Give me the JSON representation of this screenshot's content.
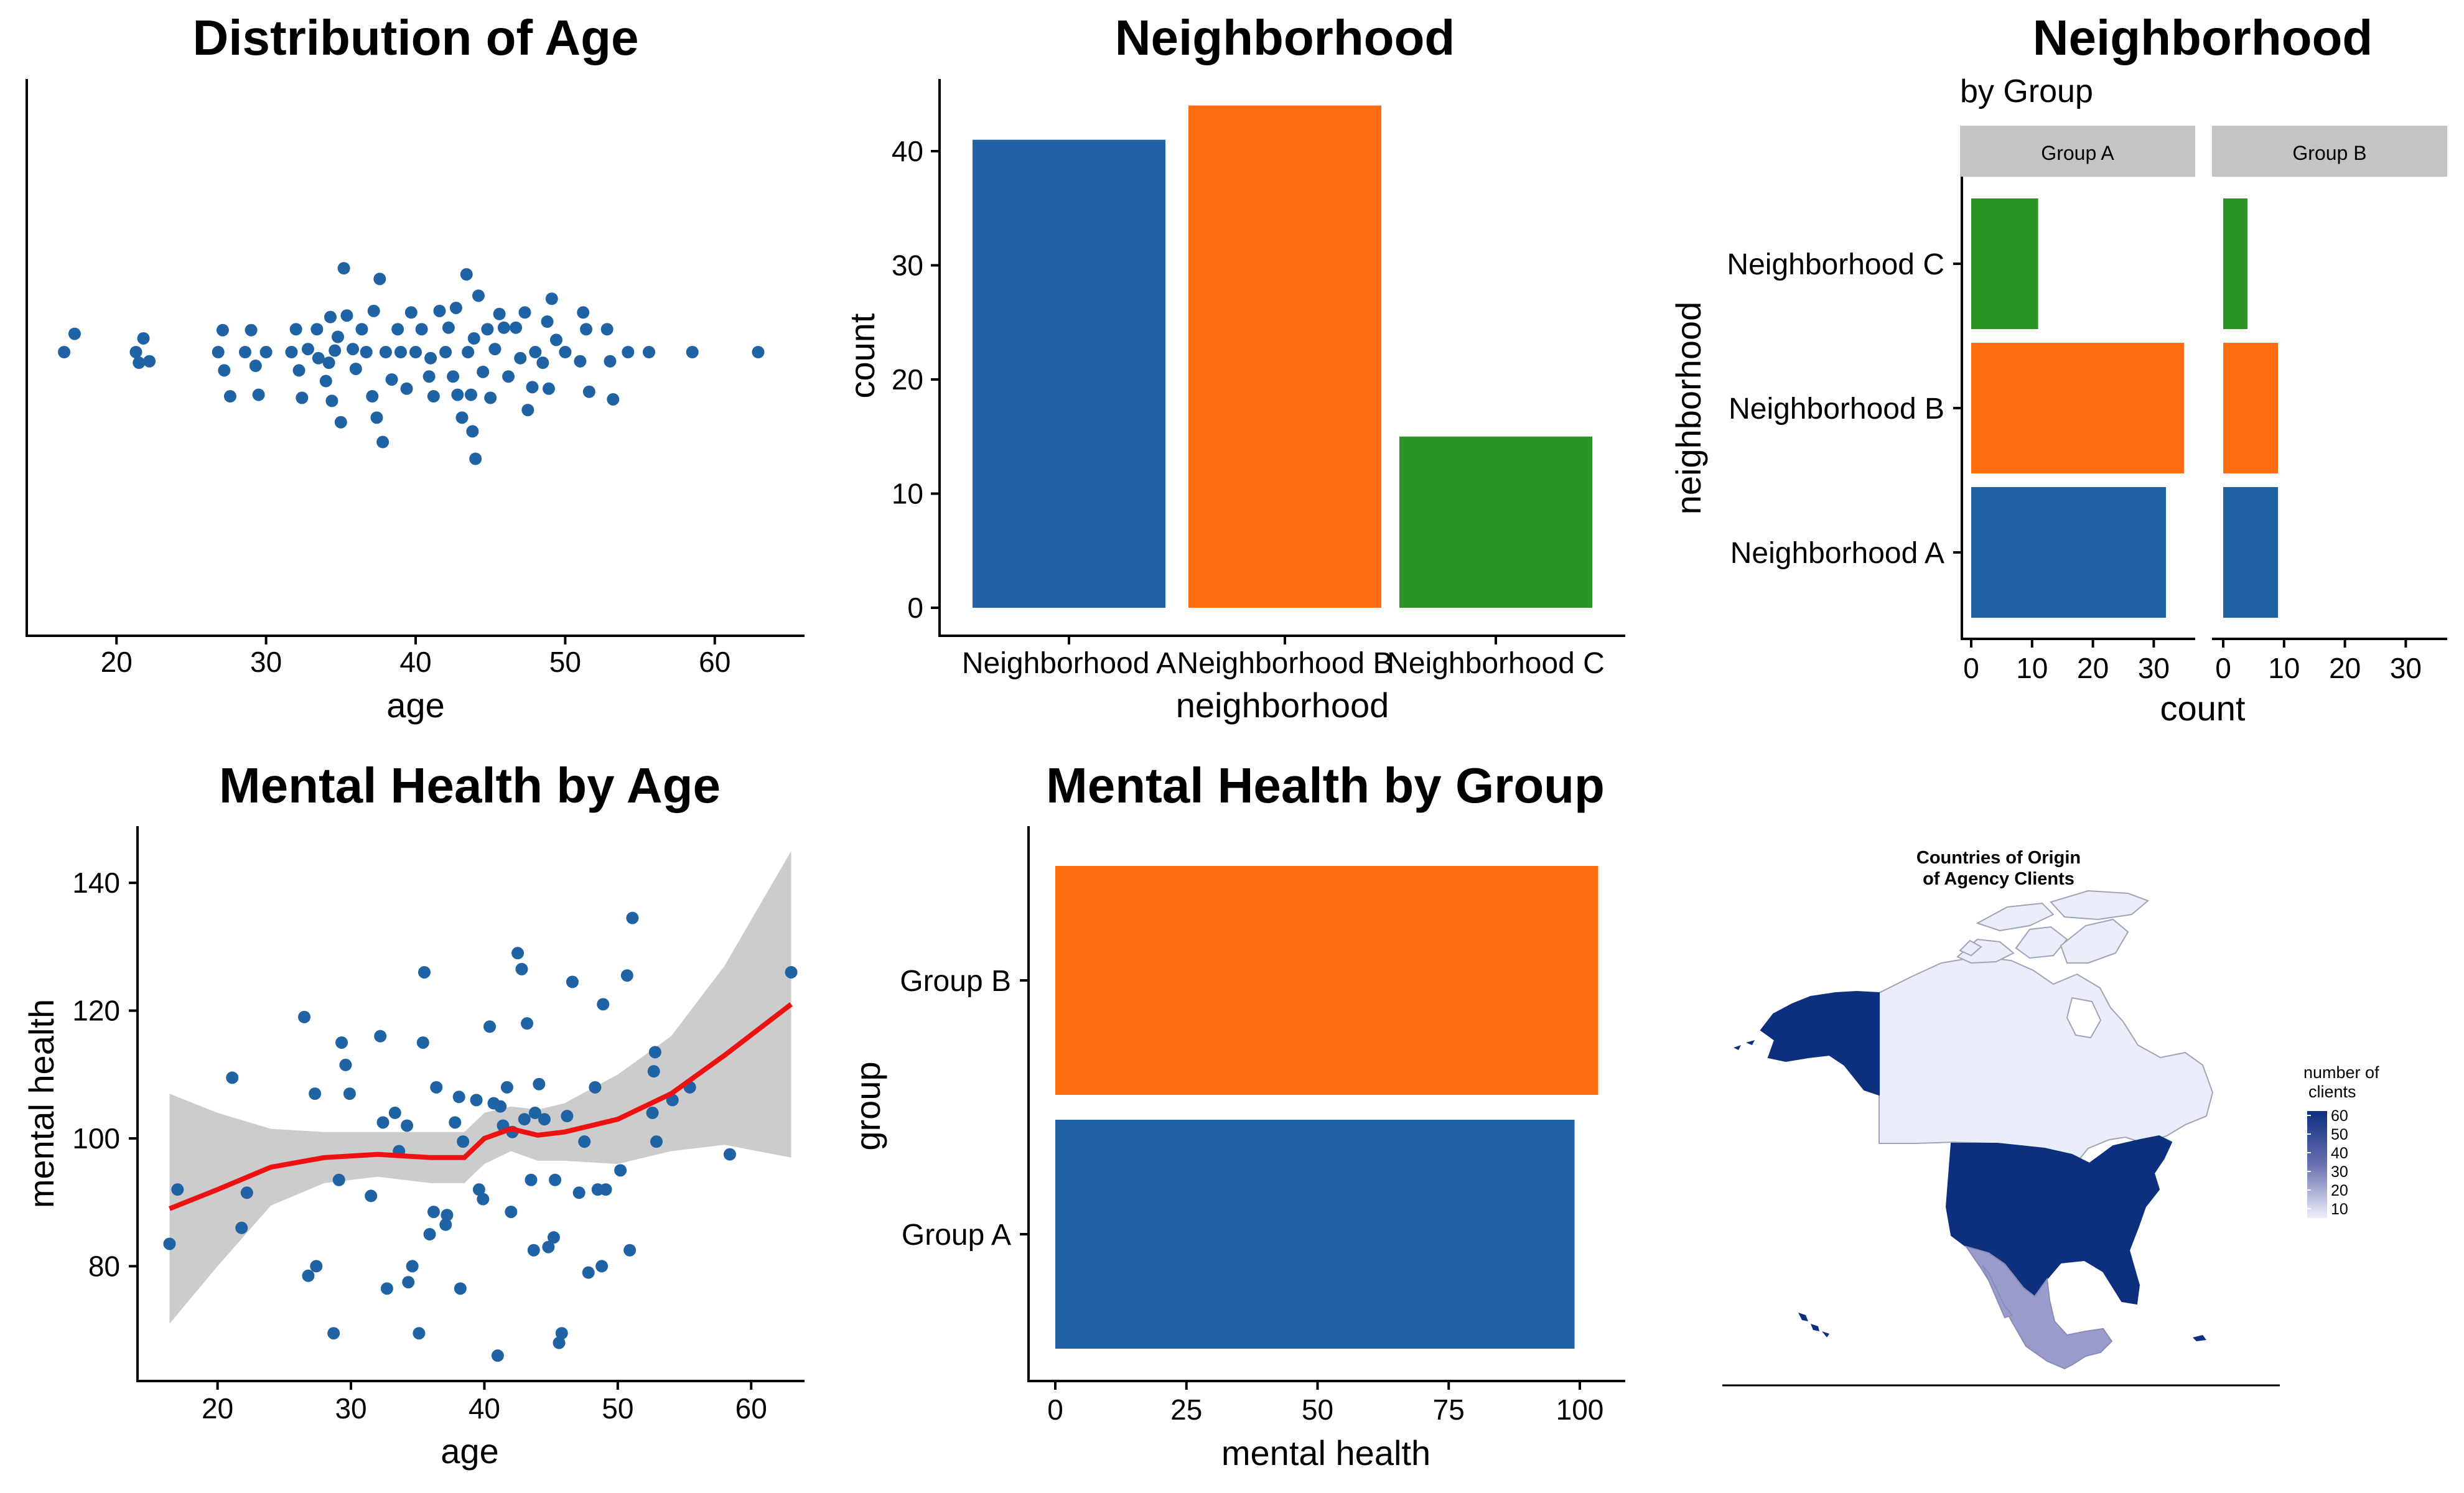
{
  "colors": {
    "blue": "#1f63a5",
    "orange": "#ff6c0f",
    "green": "#2a9424",
    "smooth": "#ee1111",
    "band": "#cccccc",
    "strip": "#c4c4c4",
    "map_dark": "#0c2f7e",
    "map_mid": "#9a9dcb",
    "map_light": "#e9edfa"
  },
  "chart_data": [
    {
      "id": "p1",
      "type": "scatter",
      "title": "Distribution of Age",
      "xlabel": "age",
      "ylabel": "",
      "xlim": [
        14,
        66
      ],
      "xticks": [
        20,
        30,
        40,
        50,
        60
      ],
      "note": "one-dimensional dot/beeswarm plot of age, y carries no data",
      "points": [
        [
          16.5,
          0
        ],
        [
          17.2,
          0.6
        ],
        [
          21.3,
          0
        ],
        [
          21.8,
          0.45
        ],
        [
          22.2,
          -0.3
        ],
        [
          26.8,
          0
        ],
        [
          27.1,
          0.72
        ],
        [
          27.2,
          -0.6
        ],
        [
          27.6,
          -1.45
        ],
        [
          28.6,
          0
        ],
        [
          29,
          0.72
        ],
        [
          29.3,
          -0.45
        ],
        [
          29.5,
          -1.4
        ],
        [
          30,
          0
        ],
        [
          31.7,
          0
        ],
        [
          32,
          0.75
        ],
        [
          32.2,
          -0.6
        ],
        [
          32.4,
          -1.5
        ],
        [
          32.8,
          0.1
        ],
        [
          33.4,
          0.75
        ],
        [
          33.5,
          -0.2
        ],
        [
          34,
          -0.95
        ],
        [
          34.2,
          -0.35
        ],
        [
          34.3,
          1.15
        ],
        [
          34.4,
          -1.6
        ],
        [
          34.6,
          0.05
        ],
        [
          34.8,
          0.5
        ],
        [
          35,
          -2.3
        ],
        [
          35.2,
          2.75
        ],
        [
          35.4,
          1.2
        ],
        [
          35.8,
          0.1
        ],
        [
          36,
          -0.55
        ],
        [
          36.4,
          0.75
        ],
        [
          36.7,
          0
        ],
        [
          37.1,
          -1.45
        ],
        [
          37.2,
          1.35
        ],
        [
          37.4,
          -2.15
        ],
        [
          37.6,
          2.4
        ],
        [
          37.8,
          -2.95
        ],
        [
          38,
          0
        ],
        [
          38.4,
          -0.9
        ],
        [
          38.8,
          0.75
        ],
        [
          39,
          0
        ],
        [
          39.4,
          -1.2
        ],
        [
          39.7,
          1.3
        ],
        [
          40,
          0
        ],
        [
          40.4,
          0.75
        ],
        [
          40.9,
          -0.8
        ],
        [
          41,
          -0.2
        ],
        [
          41.2,
          -1.45
        ],
        [
          41.6,
          1.35
        ],
        [
          42,
          0
        ],
        [
          42.2,
          0.8
        ],
        [
          42.5,
          -0.8
        ],
        [
          42.7,
          1.45
        ],
        [
          42.8,
          -1.4
        ],
        [
          43.1,
          -2.15
        ],
        [
          43.4,
          2.55
        ],
        [
          43.5,
          0
        ],
        [
          43.7,
          -1.4
        ],
        [
          43.8,
          -2.6
        ],
        [
          43.9,
          0.45
        ],
        [
          44,
          -3.5
        ],
        [
          44.2,
          1.85
        ],
        [
          44.5,
          -0.65
        ],
        [
          44.8,
          0.75
        ],
        [
          45,
          -1.5
        ],
        [
          45.3,
          0.1
        ],
        [
          45.6,
          1.25
        ],
        [
          45.9,
          0.8
        ],
        [
          46.2,
          -0.8
        ],
        [
          46.7,
          0.8
        ],
        [
          47,
          -0.2
        ],
        [
          47.3,
          1.3
        ],
        [
          47.5,
          -1.9
        ],
        [
          47.8,
          -1.15
        ],
        [
          48,
          0
        ],
        [
          48.5,
          -0.35
        ],
        [
          48.8,
          1.0
        ],
        [
          48.9,
          -1.2
        ],
        [
          49.1,
          1.75
        ],
        [
          49.4,
          0.4
        ],
        [
          50,
          0
        ],
        [
          51,
          -0.3
        ],
        [
          51.2,
          1.3
        ],
        [
          51.4,
          0.75
        ],
        [
          51.6,
          -1.3
        ],
        [
          52.8,
          0.75
        ],
        [
          53,
          -0.3
        ],
        [
          53.2,
          -1.55
        ],
        [
          54.2,
          0
        ],
        [
          55.6,
          0
        ],
        [
          58.5,
          0
        ],
        [
          62.9,
          0
        ],
        [
          21.5,
          -0.35
        ]
      ]
    },
    {
      "id": "p2",
      "type": "bar",
      "title": "Neighborhood",
      "xlabel": "neighborhood",
      "ylabel": "count",
      "ylim": [
        0,
        44
      ],
      "yticks": [
        0,
        10,
        20,
        30,
        40
      ],
      "categories": [
        "Neighborhood A",
        "Neighborhood B",
        "Neighborhood C"
      ],
      "values": [
        41,
        44,
        15
      ]
    },
    {
      "id": "p3",
      "type": "bar",
      "orientation": "horizontal",
      "title": "Neighborhood",
      "subtitle": "by Group",
      "xlabel": "count",
      "ylabel": "neighborhood",
      "xlim": [
        0,
        34
      ],
      "xticks": [
        0,
        10,
        20,
        30
      ],
      "categories": [
        "Neighborhood A",
        "Neighborhood B",
        "Neighborhood C"
      ],
      "facets": [
        {
          "name": "Group A",
          "values": [
            32,
            35,
            11
          ]
        },
        {
          "name": "Group B",
          "values": [
            9,
            9,
            4
          ]
        }
      ]
    },
    {
      "id": "p4",
      "type": "scatter",
      "title": "Mental Health by Age",
      "xlabel": "age",
      "ylabel": "mental health",
      "xlim": [
        14,
        64
      ],
      "ylim": [
        61,
        149
      ],
      "xticks": [
        20,
        30,
        40,
        50,
        60
      ],
      "yticks": [
        80,
        100,
        120,
        140
      ],
      "points": [
        [
          16.4,
          83.5
        ],
        [
          17,
          92
        ],
        [
          21.1,
          109.5
        ],
        [
          21.8,
          86
        ],
        [
          22.2,
          91.5
        ],
        [
          26.5,
          119
        ],
        [
          26.8,
          78.5
        ],
        [
          27.4,
          80
        ],
        [
          27.3,
          107
        ],
        [
          28.7,
          69.5
        ],
        [
          29.1,
          93.5
        ],
        [
          29.3,
          115
        ],
        [
          29.6,
          111.5
        ],
        [
          29.9,
          107
        ],
        [
          31.5,
          91
        ],
        [
          32.2,
          116
        ],
        [
          32.4,
          102.5
        ],
        [
          32.7,
          76.5
        ],
        [
          33.3,
          104
        ],
        [
          33.6,
          98
        ],
        [
          34.2,
          102
        ],
        [
          34.3,
          77.5
        ],
        [
          34.6,
          80
        ],
        [
          35.1,
          69.5
        ],
        [
          35.4,
          115
        ],
        [
          35.5,
          126
        ],
        [
          35.9,
          85
        ],
        [
          36.2,
          88.5
        ],
        [
          36.4,
          108
        ],
        [
          37.1,
          86.5
        ],
        [
          37.2,
          88
        ],
        [
          37.8,
          102.5
        ],
        [
          38.1,
          106.5
        ],
        [
          38.2,
          76.5
        ],
        [
          38.4,
          99.5
        ],
        [
          39.4,
          106
        ],
        [
          39.6,
          92
        ],
        [
          39.9,
          90.5
        ],
        [
          40.4,
          117.5
        ],
        [
          40.7,
          105.5
        ],
        [
          41,
          66
        ],
        [
          41.2,
          105
        ],
        [
          41.4,
          102
        ],
        [
          41.7,
          108
        ],
        [
          42,
          88.5
        ],
        [
          42.1,
          101
        ],
        [
          42.5,
          129
        ],
        [
          42.8,
          126.5
        ],
        [
          43,
          103
        ],
        [
          43.2,
          118
        ],
        [
          43.5,
          93.5
        ],
        [
          43.7,
          82.5
        ],
        [
          43.8,
          104
        ],
        [
          44.1,
          108.5
        ],
        [
          44.5,
          103
        ],
        [
          44.8,
          83
        ],
        [
          45.2,
          84.5
        ],
        [
          45.3,
          93.5
        ],
        [
          45.6,
          68
        ],
        [
          45.8,
          69.5
        ],
        [
          46.2,
          103.5
        ],
        [
          46.6,
          124.5
        ],
        [
          47.1,
          91.5
        ],
        [
          47.5,
          99.5
        ],
        [
          47.8,
          79
        ],
        [
          48.3,
          108
        ],
        [
          48.5,
          92
        ],
        [
          48.8,
          80
        ],
        [
          48.9,
          121
        ],
        [
          49.1,
          92
        ],
        [
          50.2,
          95
        ],
        [
          50.7,
          125.5
        ],
        [
          50.9,
          82.5
        ],
        [
          51.1,
          134.5
        ],
        [
          52.6,
          104
        ],
        [
          52.7,
          110.5
        ],
        [
          52.8,
          113.5
        ],
        [
          52.9,
          99.5
        ],
        [
          54.1,
          106
        ],
        [
          55.4,
          108
        ],
        [
          58.4,
          97.5
        ],
        [
          63,
          126
        ]
      ],
      "smooth": [
        [
          16.4,
          89
        ],
        [
          20,
          92
        ],
        [
          24,
          95.5
        ],
        [
          28,
          97
        ],
        [
          32,
          97.5
        ],
        [
          36,
          97
        ],
        [
          38.5,
          97
        ],
        [
          40,
          100
        ],
        [
          42,
          101.5
        ],
        [
          44,
          100.5
        ],
        [
          46,
          101
        ],
        [
          50,
          103
        ],
        [
          54,
          107
        ],
        [
          58,
          113
        ],
        [
          63,
          121
        ]
      ],
      "band_upper": [
        [
          16.4,
          107
        ],
        [
          20,
          104
        ],
        [
          24,
          101.5
        ],
        [
          28,
          101
        ],
        [
          32,
          101
        ],
        [
          36,
          101
        ],
        [
          38.5,
          101
        ],
        [
          40,
          104
        ],
        [
          42,
          105
        ],
        [
          44,
          104.5
        ],
        [
          46,
          105.5
        ],
        [
          50,
          110
        ],
        [
          54,
          116
        ],
        [
          58,
          127
        ],
        [
          63,
          145
        ]
      ],
      "band_lower": [
        [
          16.4,
          71
        ],
        [
          20,
          80
        ],
        [
          24,
          89.5
        ],
        [
          28,
          93
        ],
        [
          32,
          94
        ],
        [
          36,
          93
        ],
        [
          38.5,
          93
        ],
        [
          40,
          96
        ],
        [
          42,
          98
        ],
        [
          44,
          96.5
        ],
        [
          46,
          96.5
        ],
        [
          50,
          96
        ],
        [
          54,
          98
        ],
        [
          58,
          99
        ],
        [
          63,
          97
        ]
      ]
    },
    {
      "id": "p5",
      "type": "bar",
      "orientation": "horizontal",
      "title": "Mental Health by Group",
      "xlabel": "mental health",
      "ylabel": "group",
      "xlim": [
        -5,
        109
      ],
      "xticks": [
        0,
        25,
        50,
        75,
        100
      ],
      "categories": [
        "Group A",
        "Group B"
      ],
      "values": [
        99,
        103.5
      ]
    }
  ],
  "map": {
    "title_lines": [
      "Countries of Origin",
      "of Agency Clients"
    ],
    "legend_title_lines": [
      "number of",
      "clients"
    ],
    "legend_ticks": [
      "60",
      "50",
      "40",
      "30",
      "20",
      "10"
    ],
    "legend_range": [
      7,
      61
    ],
    "regions": [
      {
        "name": "Canada",
        "value": 8,
        "color": "#e9edfa"
      },
      {
        "name": "Alaska",
        "value": 60,
        "color": "#0c2f7e"
      },
      {
        "name": "United States",
        "value": 60,
        "color": "#0c2f7e"
      },
      {
        "name": "Mexico",
        "value": 28,
        "color": "#9a9dcb"
      }
    ]
  }
}
